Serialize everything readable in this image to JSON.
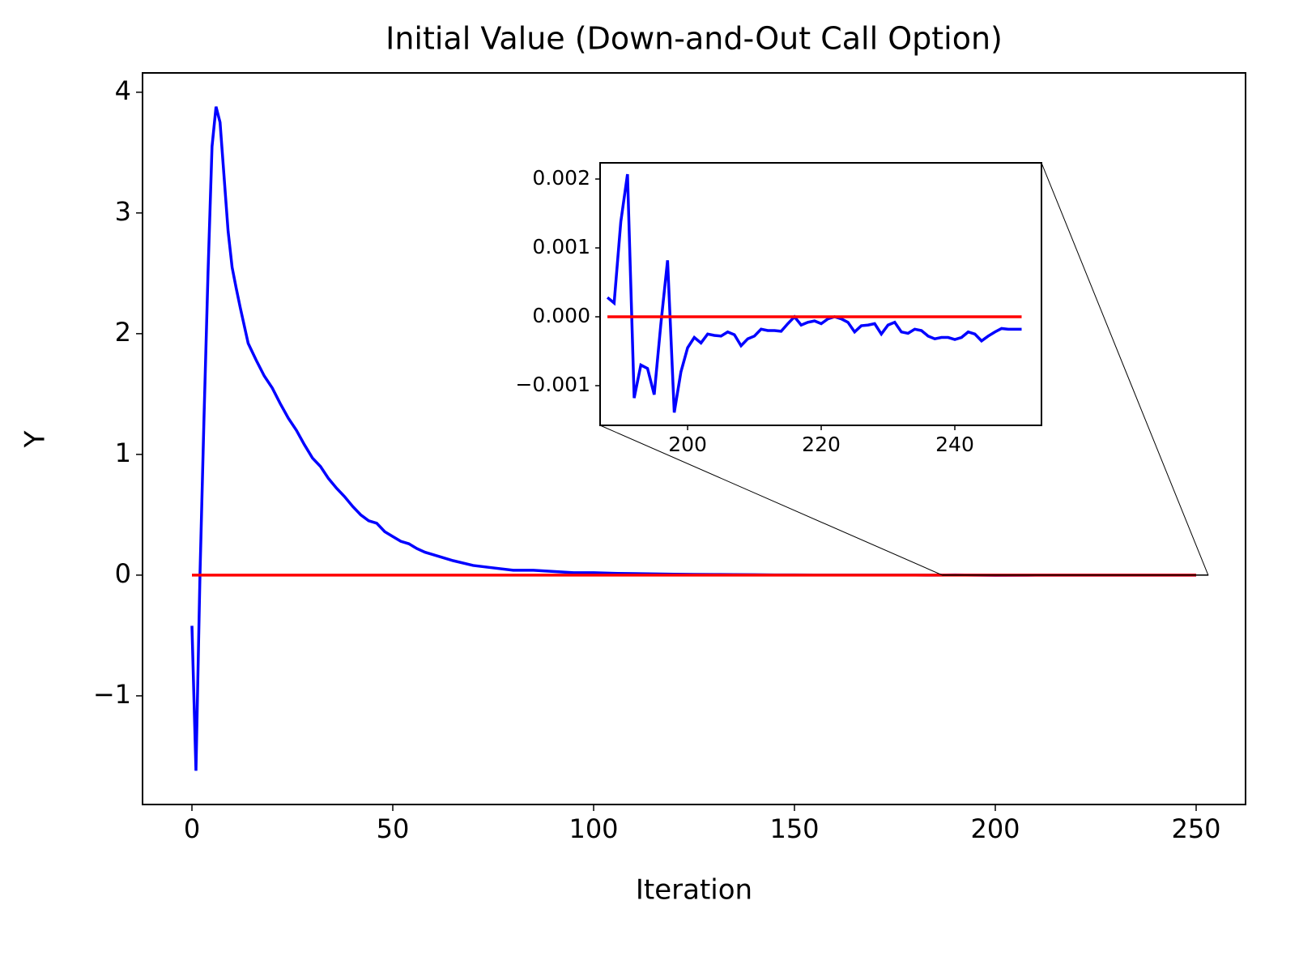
{
  "chart_data": [
    {
      "type": "line",
      "title": "Initial Value (Down-and-Out Call Option)",
      "x_label": "Iteration",
      "y_label": "Y",
      "xlim": [
        -12.3,
        262.3
      ],
      "ylim": [
        -1.9,
        4.16
      ],
      "xticks": [
        0,
        50,
        100,
        150,
        200,
        250
      ],
      "yticks": [
        {
          "value": -1,
          "label": "−1"
        },
        0,
        1,
        2,
        3,
        4
      ],
      "series": [
        {
          "color": "#0000ff",
          "x": [
            0,
            1,
            2,
            3,
            4,
            5,
            6,
            7,
            8,
            9,
            10,
            11,
            12,
            14,
            16,
            18,
            20,
            22,
            24,
            26,
            28,
            30,
            32,
            34,
            36,
            38,
            40,
            42,
            44,
            46,
            48,
            50,
            52,
            54,
            56,
            58,
            60,
            65,
            70,
            75,
            80,
            85,
            90,
            95,
            100,
            105,
            110,
            115,
            120,
            125,
            130,
            135,
            140,
            145,
            150,
            155,
            160,
            165,
            170,
            175,
            180,
            185,
            190,
            200,
            210,
            220,
            230,
            240,
            250
          ],
          "values": [
            -0.42,
            -1.62,
            0.0,
            1.3,
            2.5,
            3.55,
            3.88,
            3.75,
            3.3,
            2.85,
            2.55,
            2.38,
            2.22,
            1.92,
            1.78,
            1.65,
            1.55,
            1.42,
            1.3,
            1.2,
            1.08,
            0.97,
            0.9,
            0.8,
            0.72,
            0.65,
            0.57,
            0.5,
            0.45,
            0.43,
            0.36,
            0.32,
            0.28,
            0.26,
            0.22,
            0.19,
            0.17,
            0.12,
            0.08,
            0.06,
            0.04,
            0.04,
            0.03,
            0.02,
            0.02,
            0.015,
            0.013,
            0.01,
            0.008,
            0.006,
            0.005,
            0.004,
            0.003,
            0.002,
            0.002,
            0.001,
            0.001,
            0.001,
            0.001,
            0.0005,
            0.0005,
            0.0003,
            0.0014,
            -0.0014,
            -0.0003,
            -0.0001,
            -0.0001,
            -0.0003,
            -0.0002
          ]
        },
        {
          "color": "#ff0000",
          "x": [
            0,
            250
          ],
          "values": [
            0,
            0
          ]
        }
      ]
    },
    {
      "type": "line",
      "xlim": [
        186.9,
        252.97
      ],
      "ylim": [
        -0.001576,
        0.002235
      ],
      "xticks": [
        200,
        220,
        240
      ],
      "yticks": [
        {
          "value": -0.001,
          "label": "−0.001"
        },
        {
          "value": 0,
          "label": "0.000"
        },
        0.001,
        0.002
      ],
      "series": [
        {
          "color": "#0000ff",
          "x": [
            188,
            189,
            190,
            191,
            192,
            193,
            194,
            195,
            196,
            197,
            198,
            199,
            200,
            201,
            202,
            203,
            204,
            205,
            206,
            207,
            208,
            209,
            210,
            211,
            212,
            213,
            214,
            215,
            216,
            217,
            218,
            219,
            220,
            221,
            222,
            223,
            224,
            225,
            226,
            227,
            228,
            229,
            230,
            231,
            232,
            233,
            234,
            235,
            236,
            237,
            238,
            239,
            240,
            241,
            242,
            243,
            244,
            245,
            246,
            247,
            248,
            249,
            250
          ],
          "values": [
            0.00028,
            0.0002,
            0.00138,
            0.00207,
            -0.00118,
            -0.0007,
            -0.00075,
            -0.00113,
            -0.0001,
            0.00082,
            -0.00139,
            -0.0008,
            -0.00045,
            -0.0003,
            -0.00038,
            -0.00025,
            -0.00027,
            -0.00028,
            -0.00022,
            -0.00026,
            -0.00042,
            -0.00032,
            -0.00028,
            -0.00018,
            -0.0002,
            -0.0002,
            -0.00021,
            -0.0001,
            0,
            -0.00012,
            -8e-05,
            -6e-05,
            -0.0001,
            -3e-05,
            0,
            -3e-05,
            -8e-05,
            -0.00022,
            -0.00013,
            -0.00012,
            -0.0001,
            -0.00025,
            -0.00012,
            -8e-05,
            -0.00022,
            -0.00024,
            -0.00018,
            -0.0002,
            -0.00028,
            -0.00032,
            -0.0003,
            -0.0003,
            -0.00033,
            -0.0003,
            -0.00022,
            -0.00025,
            -0.00035,
            -0.00028,
            -0.00022,
            -0.00017,
            -0.00018,
            -0.00018,
            -0.00018
          ]
        },
        {
          "color": "#ff0000",
          "x": [
            188,
            250
          ],
          "values": [
            0,
            0
          ]
        }
      ]
    }
  ]
}
